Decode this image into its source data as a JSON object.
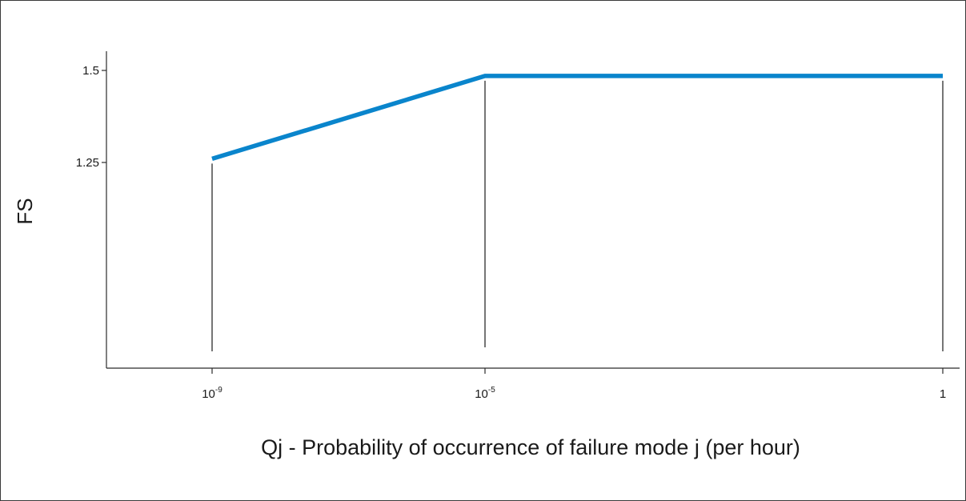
{
  "chart_data": {
    "type": "line",
    "xlabel": "Qj - Probability of occurrence of failure mode j (per hour)",
    "ylabel": "FS",
    "x_scale": "log",
    "x": [
      1e-09,
      1e-05,
      1
    ],
    "x_tick_labels": [
      {
        "value": 1e-09,
        "base": "10",
        "exp": "-9"
      },
      {
        "value": 1e-05,
        "base": "10",
        "exp": "-5"
      },
      {
        "value": 1,
        "base": "1",
        "exp": ""
      }
    ],
    "y_ticks": [
      1.25,
      1.5
    ],
    "y_tick_labels": [
      "1.25",
      "1.5"
    ],
    "series": [
      {
        "values": [
          1.26,
          1.485,
          1.485
        ],
        "color": "#0a85cc"
      }
    ],
    "grid": false,
    "legend": false,
    "line_color": "#0a85cc",
    "axis_color": "#2b2b2b"
  }
}
